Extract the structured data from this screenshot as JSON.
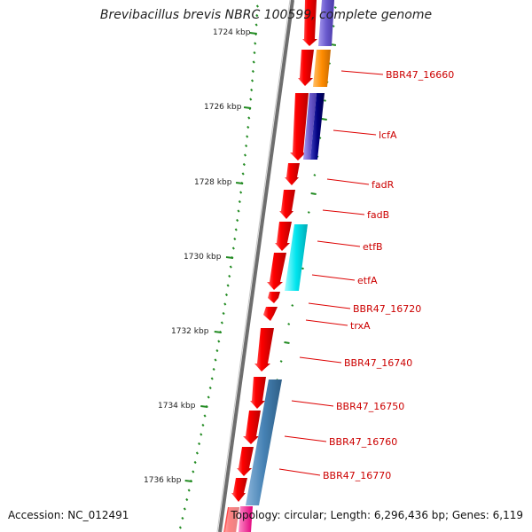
{
  "title": "Brevibacillus brevis NBRC 100599, complete genome",
  "footer": {
    "accession": "Accession: NC_012491",
    "summary": "Topology: circular; Length: 6,296,436 bp; Genes: 6,119"
  },
  "scale_ticks": [
    {
      "label": "1724 kbp",
      "kbp": 1724
    },
    {
      "label": "1726 kbp",
      "kbp": 1726
    },
    {
      "label": "1728 kbp",
      "kbp": 1728
    },
    {
      "label": "1730 kbp",
      "kbp": 1730
    },
    {
      "label": "1732 kbp",
      "kbp": 1732
    },
    {
      "label": "1734 kbp",
      "kbp": 1734
    },
    {
      "label": "1736 kbp",
      "kbp": 1736
    }
  ],
  "gene_labels": [
    "BBR47_16660",
    "lcfA",
    "fadR",
    "fadB",
    "etfB",
    "etfA",
    "BBR47_16720",
    "trxA",
    "BBR47_16740",
    "BBR47_16750",
    "BBR47_16760",
    "BBR47_16770"
  ],
  "colors": {
    "cds": "#ee0000",
    "backbone": "#808080",
    "tick": "#228B22",
    "label": "#cc0000",
    "blast_purple": "#6a5acd",
    "blast_orange": "#ff8c00",
    "blast_navy": "#000080",
    "blast_cyan": "#00e5ee",
    "blast_steel": "#4682b4",
    "blast_pink": "#ff1493"
  }
}
